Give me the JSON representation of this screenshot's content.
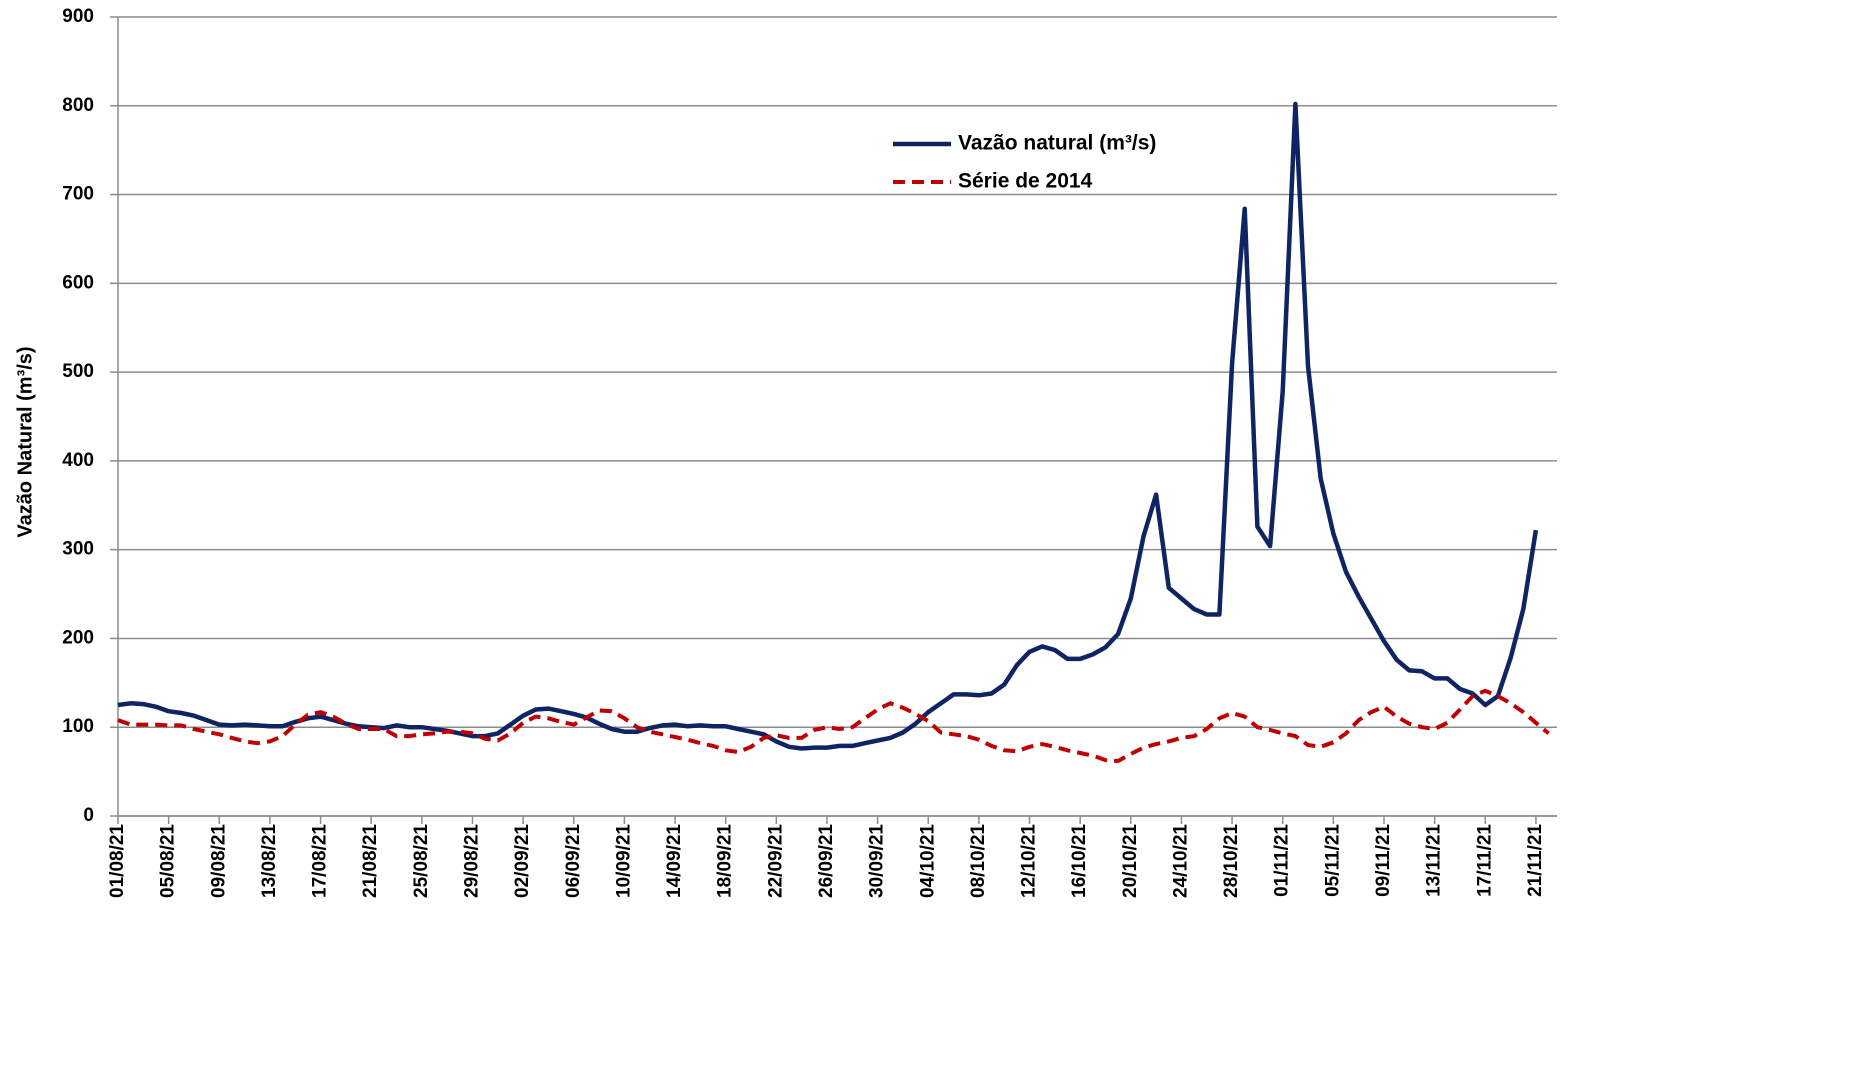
{
  "chart_data": {
    "type": "line",
    "y_label": "Vazão Natural  (m³/s)",
    "categories": [
      "01/08/21",
      null,
      null,
      null,
      "05/08/21",
      null,
      null,
      null,
      "09/08/21",
      null,
      null,
      null,
      "13/08/21",
      null,
      null,
      null,
      "17/08/21",
      null,
      null,
      null,
      "21/08/21",
      null,
      null,
      null,
      "25/08/21",
      null,
      null,
      null,
      "29/08/21",
      null,
      null,
      null,
      "02/09/21",
      null,
      null,
      null,
      "06/09/21",
      null,
      null,
      null,
      "10/09/21",
      null,
      null,
      null,
      "14/09/21",
      null,
      null,
      null,
      "18/09/21",
      null,
      null,
      null,
      "22/09/21",
      null,
      null,
      null,
      "26/09/21",
      null,
      null,
      null,
      "30/09/21",
      null,
      null,
      null,
      "04/10/21",
      null,
      null,
      null,
      "08/10/21",
      null,
      null,
      null,
      "12/10/21",
      null,
      null,
      null,
      "16/10/21",
      null,
      null,
      null,
      "20/10/21",
      null,
      null,
      null,
      "24/10/21",
      null,
      null,
      null,
      "28/10/21",
      null,
      null,
      null,
      "01/11/21",
      null,
      null,
      null,
      "05/11/21",
      null,
      null,
      null,
      "09/11/21",
      null,
      null,
      null,
      "13/11/21",
      null,
      null,
      null,
      "17/11/21",
      null,
      null,
      null,
      "21/11/21",
      null
    ],
    "series": [
      {
        "name": "Vazão natural (m³/s)",
        "color": "#0f2463",
        "dash": false,
        "values": [
          125,
          127,
          126,
          123,
          118,
          116,
          113,
          108,
          103,
          102,
          103,
          102,
          101,
          101,
          106,
          110,
          112,
          108,
          104,
          101,
          100,
          99,
          102,
          100,
          100,
          98,
          96,
          93,
          90,
          90,
          93,
          103,
          113,
          120,
          121,
          118,
          115,
          111,
          104,
          98,
          95,
          95,
          99,
          102,
          103,
          101,
          102,
          101,
          101,
          98,
          95,
          92,
          84,
          78,
          76,
          77,
          77,
          79,
          79,
          82,
          85,
          88,
          94,
          104,
          117,
          127,
          137,
          137,
          136,
          138,
          148,
          170,
          185,
          191,
          187,
          177,
          177,
          182,
          190,
          205,
          245,
          315,
          362,
          257,
          245,
          233,
          227,
          227,
          510,
          684,
          326,
          304,
          478,
          802,
          507,
          380,
          318,
          275,
          247,
          222,
          197,
          176,
          164,
          163,
          155,
          155,
          143,
          138,
          125,
          135,
          178,
          233,
          322,
          null
        ]
      },
      {
        "name": "Série de 2014",
        "color": "#c00000",
        "dash": true,
        "values": [
          108,
          103,
          103,
          103,
          102,
          102,
          98,
          95,
          92,
          88,
          84,
          82,
          84,
          90,
          103,
          114,
          117,
          112,
          104,
          98,
          98,
          98,
          90,
          90,
          92,
          93,
          95,
          95,
          93,
          87,
          85,
          93,
          105,
          112,
          110,
          106,
          103,
          111,
          119,
          118,
          110,
          100,
          95,
          92,
          89,
          86,
          82,
          79,
          74,
          72,
          78,
          88,
          91,
          88,
          88,
          97,
          100,
          98,
          100,
          110,
          120,
          127,
          122,
          115,
          107,
          94,
          92,
          90,
          86,
          79,
          74,
          73,
          78,
          81,
          78,
          74,
          71,
          68,
          63,
          62,
          70,
          77,
          81,
          84,
          88,
          90,
          98,
          110,
          116,
          112,
          100,
          97,
          93,
          90,
          80,
          78,
          83,
          93,
          108,
          117,
          123,
          112,
          104,
          100,
          98,
          105,
          120,
          135,
          141,
          135,
          127,
          117,
          105,
          93
        ]
      }
    ],
    "ylim": [
      0,
      900
    ],
    "yticks": [
      0,
      100,
      200,
      300,
      400,
      500,
      600,
      700,
      800,
      900
    ],
    "grid": true
  }
}
